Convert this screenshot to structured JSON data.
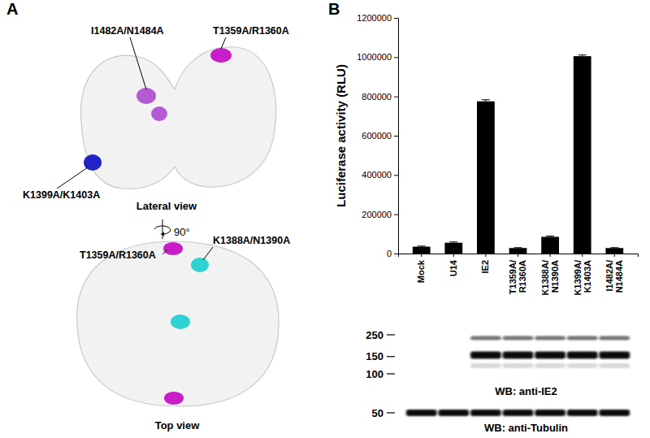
{
  "chart_data": {
    "type": "bar",
    "panel_label": "B",
    "y_label": "Luciferase activity (RLU)",
    "categories": [
      "Mock",
      "U14",
      "IE2",
      "T1359A/\nR1360A",
      "K1388A/\nN1390A",
      "K1399A/\nK1403A",
      "I1482A/\nN1484A"
    ],
    "values": [
      35000,
      55000,
      775000,
      28000,
      85000,
      1005000,
      28000
    ],
    "errors": [
      3000,
      4000,
      8000,
      2000,
      4000,
      6000,
      2000
    ],
    "color": "#000000",
    "ylim": [
      0,
      1200000
    ],
    "yticks": [
      0,
      200000,
      400000,
      600000,
      800000,
      1000000,
      1200000
    ]
  },
  "structure": {
    "panel_label": "A",
    "rotation": "90°",
    "views": [
      {
        "name": "Lateral view",
        "mutations": [
          {
            "text": "I1482A/N1484A",
            "color": "#b45ad2"
          },
          {
            "text": "T1359A/R1360A",
            "color": "#c81ec8"
          },
          {
            "text": "K1399A/K1403A",
            "color": "#2323c8"
          }
        ]
      },
      {
        "name": "Top view",
        "mutations": [
          {
            "text": "T1359A/R1360A",
            "color": "#c81ec8"
          },
          {
            "text": "K1388A/N1390A",
            "color": "#2ed2d2"
          }
        ]
      }
    ]
  },
  "western_blots": [
    {
      "label": "WB: anti-IE2",
      "markers": [
        250,
        150,
        100
      ]
    },
    {
      "label": "WB: anti-Tubulin",
      "markers": [
        50
      ]
    }
  ]
}
